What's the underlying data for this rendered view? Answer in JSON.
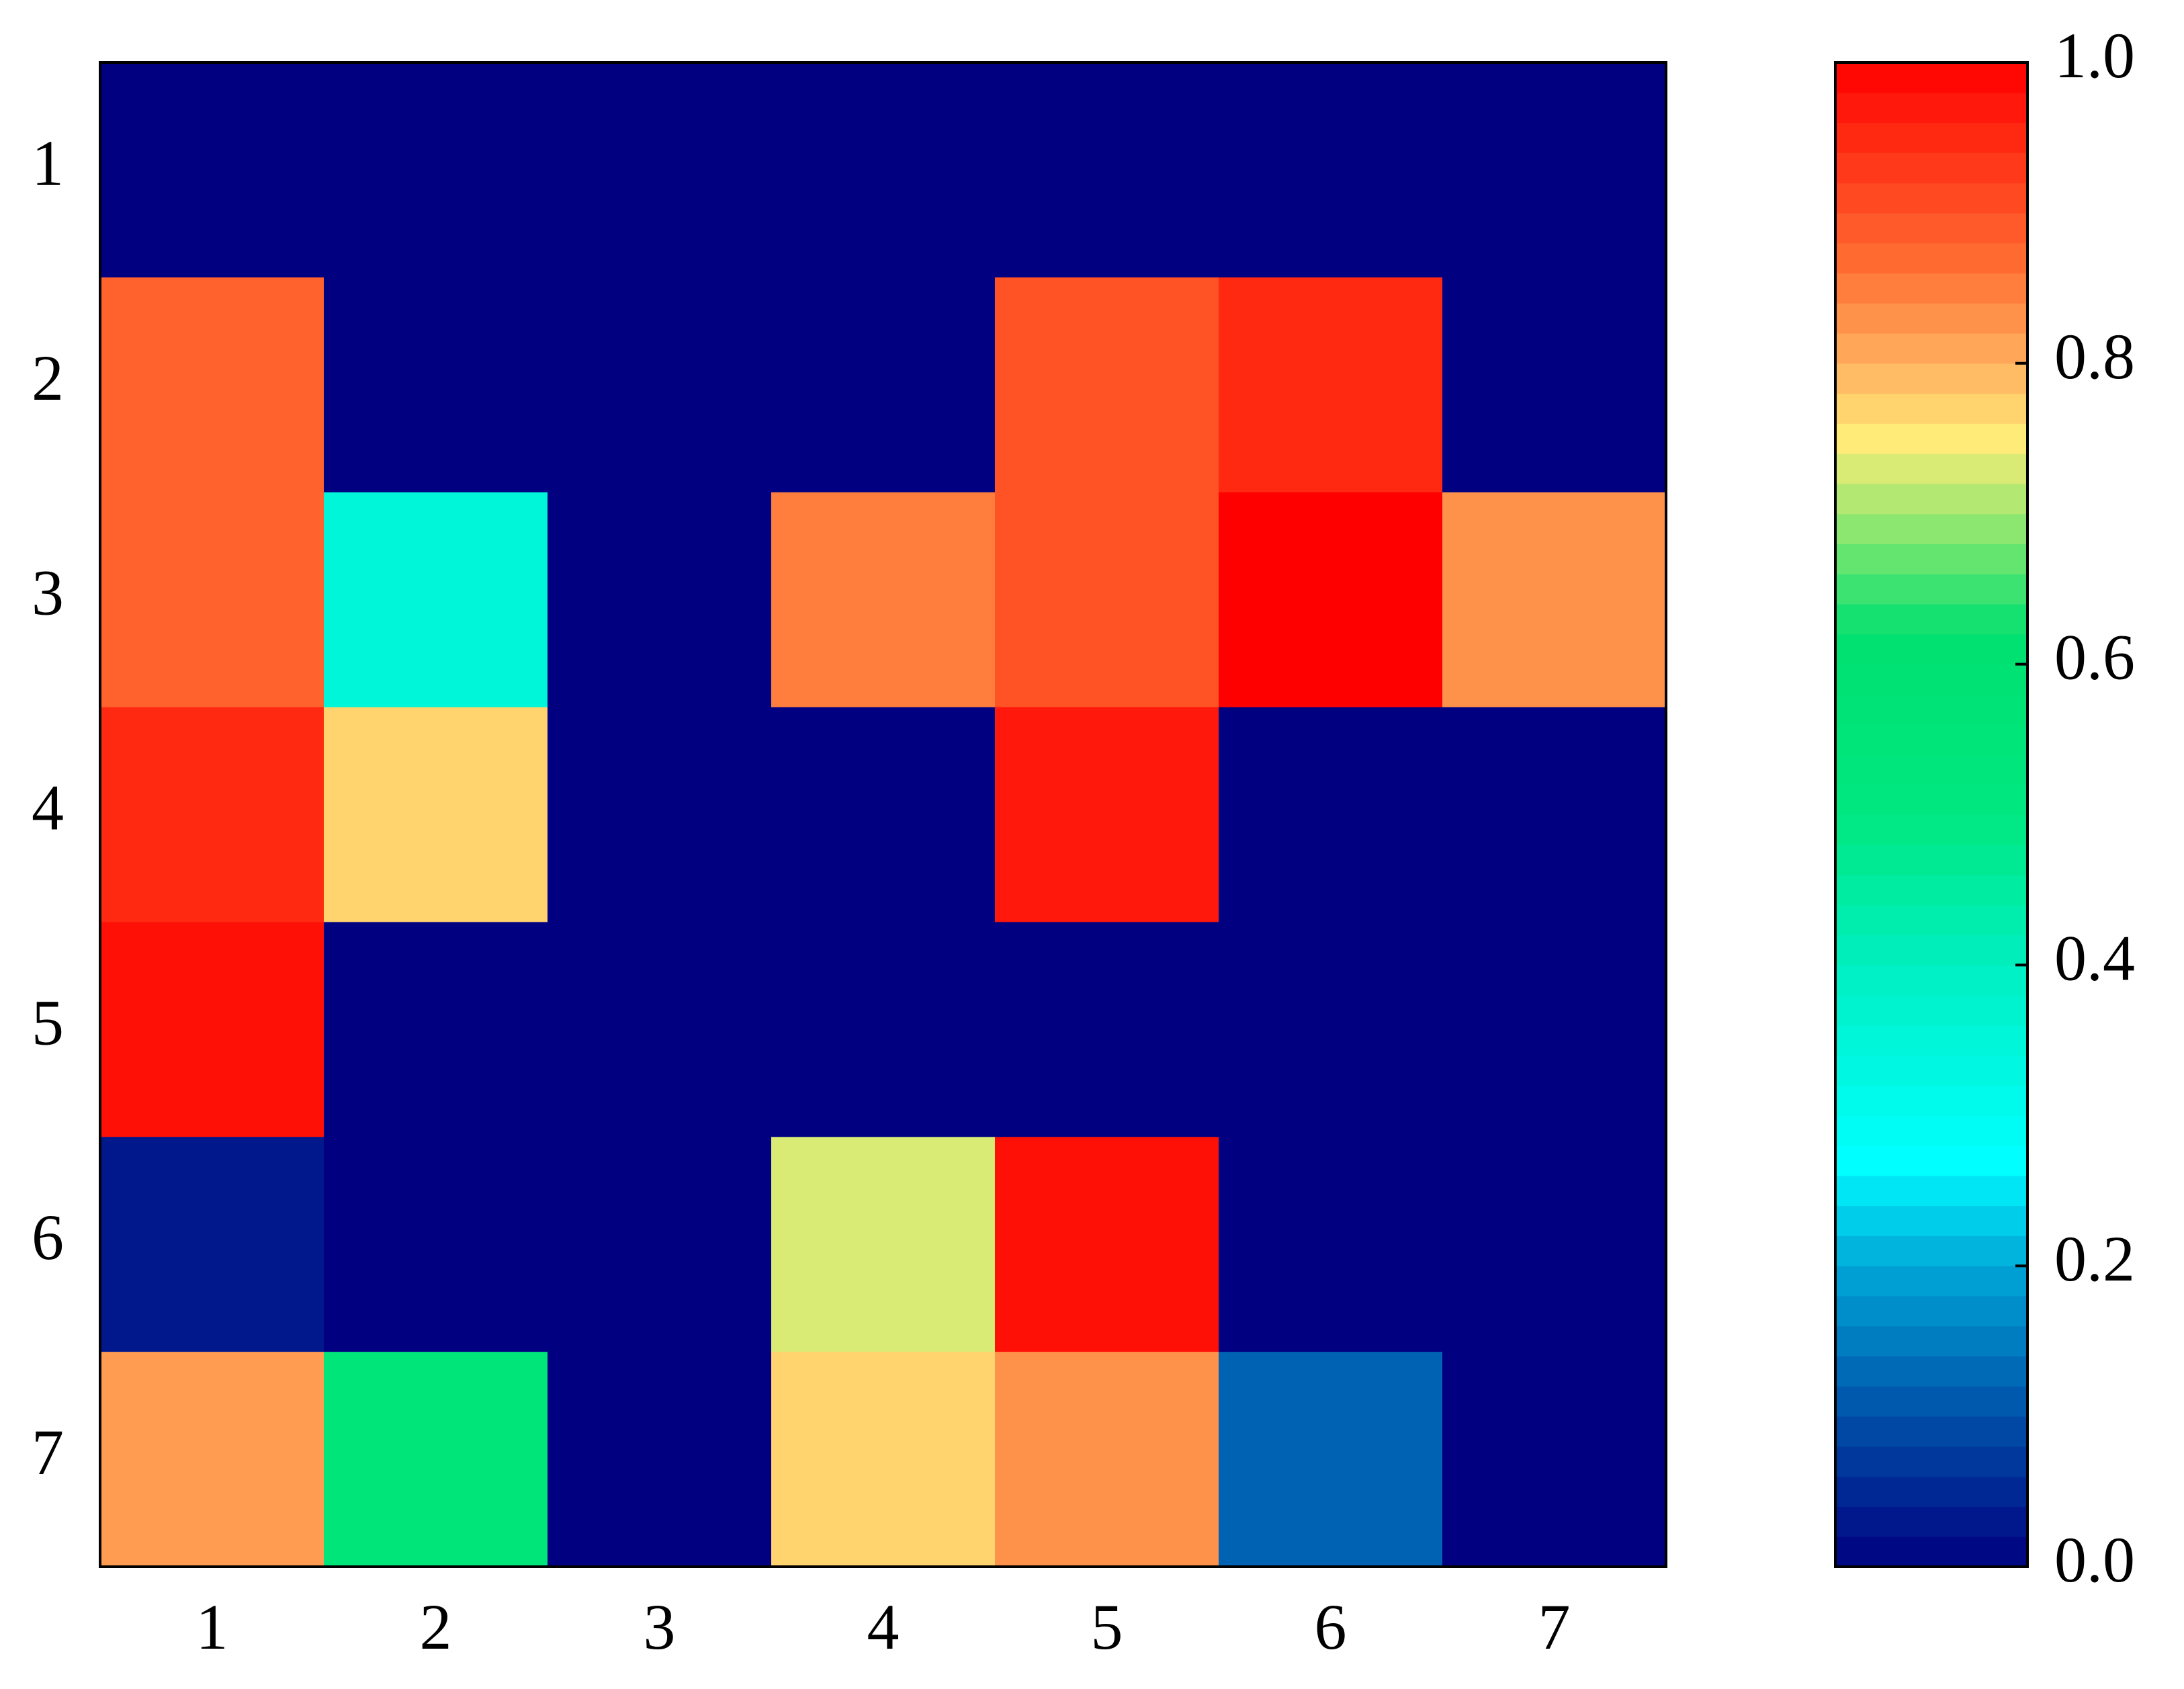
{
  "chart_data": {
    "type": "heatmap",
    "x": [
      1,
      2,
      3,
      4,
      5,
      6,
      7
    ],
    "y": [
      1,
      2,
      3,
      4,
      5,
      6,
      7
    ],
    "z": [
      [
        0,
        0,
        0,
        0,
        0,
        0,
        0
      ],
      [
        0.88,
        0,
        0,
        0,
        0.9,
        0.95,
        0
      ],
      [
        0.88,
        0.35,
        0,
        0.85,
        0.9,
        1.0,
        0.83
      ],
      [
        0.95,
        0.77,
        0,
        0,
        0.97,
        0,
        0
      ],
      [
        0.98,
        0,
        0,
        0,
        0,
        0,
        0
      ],
      [
        0.03,
        0,
        0,
        0.73,
        0.98,
        0,
        0
      ],
      [
        0.82,
        0.55,
        0,
        0.77,
        0.83,
        0.12,
        0
      ]
    ],
    "colorscale": [
      [
        0,
        "#000080"
      ],
      [
        0.1,
        "#0050a8"
      ],
      [
        0.2,
        "#00a8d8"
      ],
      [
        0.27,
        "#00ffff"
      ],
      [
        0.4,
        "#00f0c0"
      ],
      [
        0.5,
        "#00e880"
      ],
      [
        0.62,
        "#00e070"
      ],
      [
        0.7,
        "#a0e870"
      ],
      [
        0.75,
        "#ffeb78"
      ],
      [
        0.8,
        "#ffb060"
      ],
      [
        0.87,
        "#ff6a30"
      ],
      [
        1.0,
        "#ff0000"
      ]
    ],
    "zlim": [
      0,
      1
    ],
    "zticks": [
      {
        "value": 0,
        "label": "0.0"
      },
      0.2,
      0.4,
      0.6,
      0.8,
      {
        "value": 1,
        "label": "1.0"
      }
    ]
  }
}
